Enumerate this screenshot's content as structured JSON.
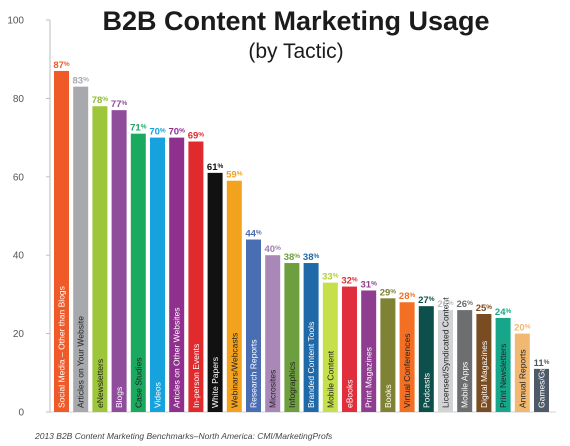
{
  "chart_data": {
    "type": "bar",
    "title": "B2B Content Marketing Usage",
    "subtitle": "(by Tactic)",
    "source": "2013 B2B Content Marketing Benchmarks–North America: CMI/MarketingProfs",
    "ylim": [
      0,
      100
    ],
    "yticks": [
      "0",
      "20",
      "40",
      "60",
      "80",
      "100"
    ],
    "grid": false,
    "legend": "none",
    "value_suffix": "%",
    "bars": [
      {
        "label": "Social Media – Other than Blogs",
        "value": 87,
        "color": "#f05a28",
        "text_color": "#ffffff",
        "value_color": "#f05a28"
      },
      {
        "label": "Articles on Your Website",
        "value": 83,
        "color": "#a7a9ac",
        "text_color": "#222222",
        "value_color": "#a7a9ac"
      },
      {
        "label": "eNewsletters",
        "value": 78,
        "color": "#9dc63b",
        "text_color": "#222222",
        "value_color": "#8dbb2e"
      },
      {
        "label": "Blogs",
        "value": 77,
        "color": "#8f4d9c",
        "text_color": "#ffffff",
        "value_color": "#8f4d9c"
      },
      {
        "label": "Case Studies",
        "value": 71,
        "color": "#1aaa5f",
        "text_color": "#222222",
        "value_color": "#1aaa5f"
      },
      {
        "label": "Videos",
        "value": 70,
        "color": "#15a2dd",
        "text_color": "#ffffff",
        "value_color": "#15a2dd"
      },
      {
        "label": "Articles on Other Websites",
        "value": 70,
        "color": "#8f2f8e",
        "text_color": "#ffffff",
        "value_color": "#8f2f8e"
      },
      {
        "label": "In-person Events",
        "value": 69,
        "color": "#e02a2e",
        "text_color": "#ffffff",
        "value_color": "#e02a2e"
      },
      {
        "label": "White Papers",
        "value": 61,
        "color": "#111111",
        "text_color": "#ffffff",
        "value_color": "#111111"
      },
      {
        "label": "Webinars/Webcasts",
        "value": 59,
        "color": "#f3a21d",
        "text_color": "#222222",
        "value_color": "#f3a21d"
      },
      {
        "label": "Research Reports",
        "value": 44,
        "color": "#4a6eb4",
        "text_color": "#ffffff",
        "value_color": "#4a6eb4"
      },
      {
        "label": "Microsites",
        "value": 40,
        "color": "#a987b6",
        "text_color": "#222222",
        "value_color": "#9e7bb0"
      },
      {
        "label": "Infographics",
        "value": 38,
        "color": "#6e9f3e",
        "text_color": "#222222",
        "value_color": "#6e9f3e"
      },
      {
        "label": "Branded Content Tools",
        "value": 38,
        "color": "#2069a8",
        "text_color": "#ffffff",
        "value_color": "#2069a8"
      },
      {
        "label": "Mobile Content",
        "value": 33,
        "color": "#c5e04a",
        "text_color": "#222222",
        "value_color": "#b3cf35"
      },
      {
        "label": "eBooks",
        "value": 32,
        "color": "#e12e3c",
        "text_color": "#ffffff",
        "value_color": "#e12e3c"
      },
      {
        "label": "Print Magazines",
        "value": 31,
        "color": "#8f3d8f",
        "text_color": "#ffffff",
        "value_color": "#8f3d8f"
      },
      {
        "label": "Books",
        "value": 29,
        "color": "#7f8234",
        "text_color": "#ffffff",
        "value_color": "#7f8234"
      },
      {
        "label": "Virtual Conferences",
        "value": 28,
        "color": "#f26f23",
        "text_color": "#222222",
        "value_color": "#f26f23"
      },
      {
        "label": "Podcasts",
        "value": 27,
        "color": "#0d4f4a",
        "text_color": "#ffffff",
        "value_color": "#0d4f4a"
      },
      {
        "label": "Licensed/Syndicated Content",
        "value": 26,
        "color": "#d1d3d4",
        "text_color": "#222222",
        "value_color": "#bcbec0"
      },
      {
        "label": "Mobile Apps",
        "value": 26,
        "color": "#6d6e70",
        "text_color": "#ffffff",
        "value_color": "#6d6e70"
      },
      {
        "label": "Digital Magazines",
        "value": 25,
        "color": "#7a4c22",
        "text_color": "#ffffff",
        "value_color": "#7a4c22"
      },
      {
        "label": "Print Newsletters",
        "value": 24,
        "color": "#17a689",
        "text_color": "#222222",
        "value_color": "#17a689"
      },
      {
        "label": "Annual Reports",
        "value": 20,
        "color": "#f1b872",
        "text_color": "#222222",
        "value_color": "#f1b872"
      },
      {
        "label": "Games/Gamification",
        "value": 11,
        "color": "#4e5a68",
        "text_color": "#ffffff",
        "value_color": "#4e5a68"
      }
    ]
  }
}
